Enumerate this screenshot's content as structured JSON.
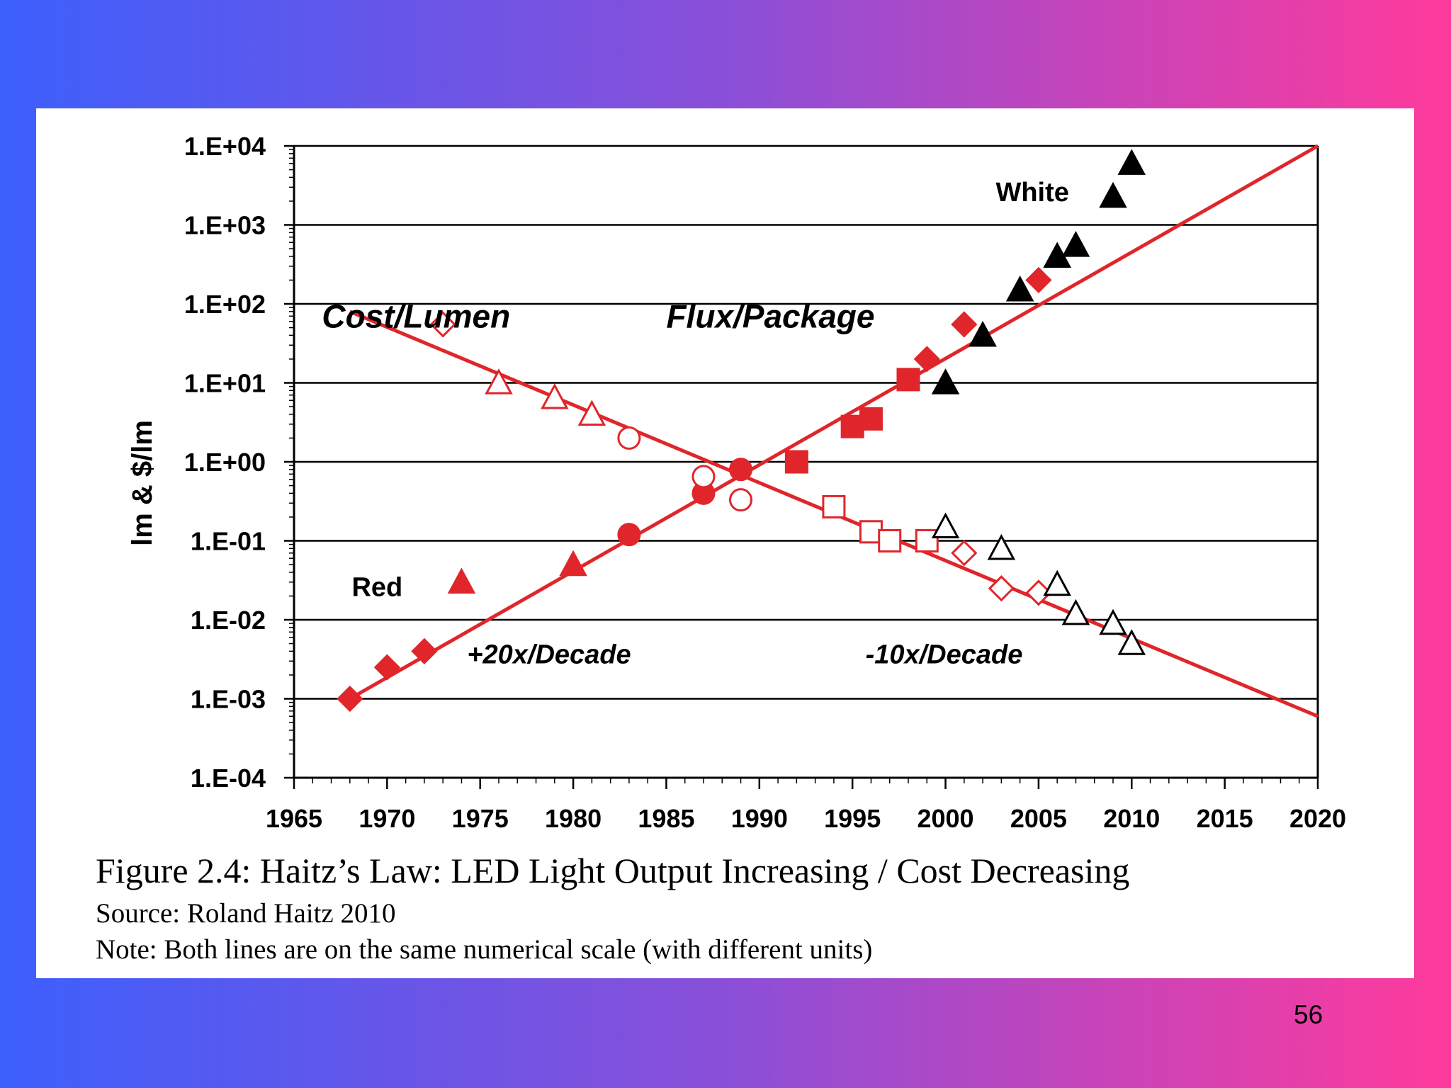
{
  "slide": {
    "page_number": "56",
    "background_gradient": [
      "#3d5ffc",
      "#8a4fd8",
      "#ff3a9c"
    ]
  },
  "figure": {
    "caption_title": "Figure 2.4: Haitz’s Law: LED Light Output Increasing / Cost Decreasing",
    "caption_source": "Source:  Roland Haitz 2010",
    "caption_note": "Note: Both lines are on the same numerical scale (with different units)"
  },
  "chart_data": {
    "type": "scatter",
    "title": "",
    "ylabel": "lm & $/lm",
    "xlabel": "",
    "yscale": "log",
    "xlim": [
      1965,
      2020
    ],
    "ylim": [
      0.0001,
      10000
    ],
    "x_ticks": [
      1965,
      1970,
      1975,
      1980,
      1985,
      1990,
      1995,
      2000,
      2005,
      2010,
      2015,
      2020
    ],
    "y_ticks": [
      {
        "value": 0.0001,
        "label": "1.E-04"
      },
      {
        "value": 0.001,
        "label": "1.E-03"
      },
      {
        "value": 0.01,
        "label": "1.E-02"
      },
      {
        "value": 0.1,
        "label": "1.E-01"
      },
      {
        "value": 1,
        "label": "1.E+00"
      },
      {
        "value": 10,
        "label": "1.E+01"
      },
      {
        "value": 100,
        "label": "1.E+02"
      },
      {
        "value": 1000,
        "label": "1.E+03"
      },
      {
        "value": 10000,
        "label": "1.E+04"
      }
    ],
    "grid": "horizontal",
    "colors": {
      "red": "#e0262b",
      "black": "#000000"
    },
    "annotations": [
      {
        "text": "Cost/Lumen",
        "x": 1966.5,
        "y": 50,
        "italic": true
      },
      {
        "text": "Flux/Package",
        "x": 1985,
        "y": 50,
        "italic": true
      },
      {
        "text": "White",
        "x": 2002.7,
        "y": 2000,
        "italic": false
      },
      {
        "text": "Red",
        "x": 1968.1,
        "y": 0.02,
        "italic": false
      },
      {
        "text": "+20x/Decade",
        "x": 1974.3,
        "y": 0.0028,
        "italic": true
      },
      {
        "text": "-10x/Decade",
        "x": 1995.7,
        "y": 0.0028,
        "italic": true
      }
    ],
    "trend_lines": [
      {
        "name": "Flux/Package",
        "label": "+20x/Decade",
        "x": [
          1968,
          2020
        ],
        "y": [
          0.001,
          10000
        ]
      },
      {
        "name": "Cost/Lumen",
        "label": "-10x/Decade",
        "x": [
          1968,
          2020
        ],
        "y": [
          80,
          0.0006
        ]
      }
    ],
    "series": [
      {
        "name": "Red flux (filled diamond)",
        "marker": "diamond",
        "filled": true,
        "color": "#e0262b",
        "points": [
          [
            1968,
            0.001
          ],
          [
            1970,
            0.0025
          ],
          [
            1972,
            0.004
          ],
          [
            1999,
            20
          ],
          [
            2001,
            55
          ],
          [
            2005,
            200
          ]
        ]
      },
      {
        "name": "Red flux (filled circle)",
        "marker": "circle",
        "filled": true,
        "color": "#e0262b",
        "points": [
          [
            1983,
            0.12
          ],
          [
            1987,
            0.4
          ],
          [
            1989,
            0.8
          ]
        ]
      },
      {
        "name": "Red flux (filled triangle)",
        "marker": "triangle",
        "filled": true,
        "color": "#e0262b",
        "points": [
          [
            1980,
            0.05
          ],
          [
            1974,
            0.03
          ]
        ]
      },
      {
        "name": "Red flux (filled square)",
        "marker": "square",
        "filled": true,
        "color": "#e0262b",
        "points": [
          [
            1992,
            1.0
          ],
          [
            1995,
            2.8
          ],
          [
            1996,
            3.5
          ],
          [
            1998,
            11
          ]
        ]
      },
      {
        "name": "White flux (filled triangle)",
        "marker": "triangle",
        "filled": true,
        "color": "#000000",
        "points": [
          [
            2000,
            10
          ],
          [
            2002,
            40
          ],
          [
            2004,
            150
          ],
          [
            2006,
            400
          ],
          [
            2007,
            550
          ],
          [
            2009,
            2300
          ],
          [
            2010,
            6000
          ]
        ]
      },
      {
        "name": "Red cost (open diamond)",
        "marker": "diamond",
        "filled": false,
        "color": "#e0262b",
        "points": [
          [
            1973,
            55
          ],
          [
            2001,
            0.07
          ],
          [
            2003,
            0.025
          ],
          [
            2005,
            0.022
          ]
        ]
      },
      {
        "name": "Red cost (open triangle)",
        "marker": "triangle",
        "filled": false,
        "color": "#e0262b",
        "points": [
          [
            1976,
            10
          ],
          [
            1979,
            6.5
          ],
          [
            1981,
            4
          ]
        ]
      },
      {
        "name": "Red cost (open circle)",
        "marker": "circle",
        "filled": false,
        "color": "#e0262b",
        "points": [
          [
            1983,
            2.0
          ],
          [
            1987,
            0.65
          ],
          [
            1989,
            0.33
          ]
        ]
      },
      {
        "name": "Red cost (open square)",
        "marker": "square",
        "filled": false,
        "color": "#e0262b",
        "points": [
          [
            1994,
            0.27
          ],
          [
            1996,
            0.13
          ],
          [
            1997,
            0.1
          ],
          [
            1999,
            0.1
          ]
        ]
      },
      {
        "name": "White cost (open triangle)",
        "marker": "triangle",
        "filled": false,
        "color": "#000000",
        "points": [
          [
            2000,
            0.15
          ],
          [
            2003,
            0.08
          ],
          [
            2006,
            0.028
          ],
          [
            2007,
            0.012
          ],
          [
            2009,
            0.009
          ],
          [
            2010,
            0.005
          ]
        ]
      }
    ]
  }
}
